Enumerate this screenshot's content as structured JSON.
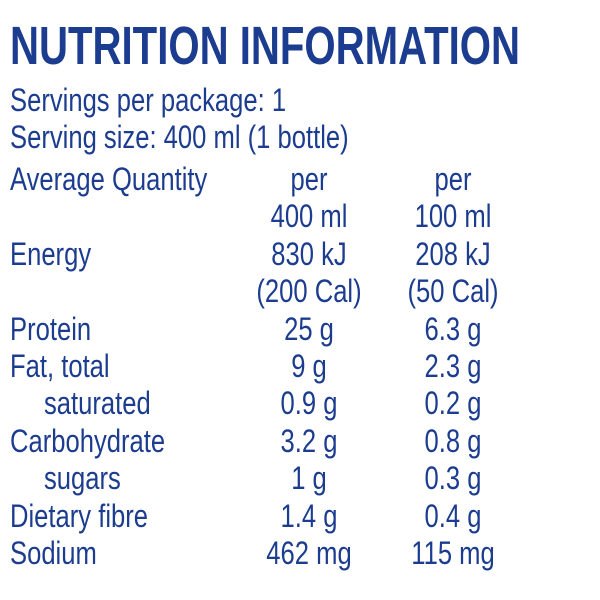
{
  "title": "NUTRITION INFORMATION",
  "servings": [
    "Servings per package: 1",
    "Serving size: 400 ml (1 bottle)"
  ],
  "table": {
    "header": [
      "Average Quantity",
      [
        "per",
        "400 ml"
      ],
      [
        "per",
        "100 ml"
      ]
    ],
    "rows": [
      [
        "Energy",
        [
          "830 kJ",
          "(200 Cal)"
        ],
        [
          "208 kJ",
          "(50 Cal)"
        ]
      ],
      [
        "Protein",
        [
          "25 g"
        ],
        [
          "6.3 g"
        ]
      ],
      [
        "Fat, total",
        [
          "9 g"
        ],
        [
          "2.3 g"
        ]
      ],
      [
        "saturated",
        [
          "0.9 g"
        ],
        [
          "0.2 g"
        ]
      ],
      [
        "Carbohydrate",
        [
          "3.2 g"
        ],
        [
          "0.8 g"
        ]
      ],
      [
        "sugars",
        [
          "1 g"
        ],
        [
          "0.3 g"
        ]
      ],
      [
        "Dietary fibre",
        [
          "1.4 g"
        ],
        [
          "0.4 g"
        ]
      ],
      [
        "Sodium",
        [
          "462 mg"
        ],
        [
          "115 mg"
        ]
      ]
    ]
  }
}
